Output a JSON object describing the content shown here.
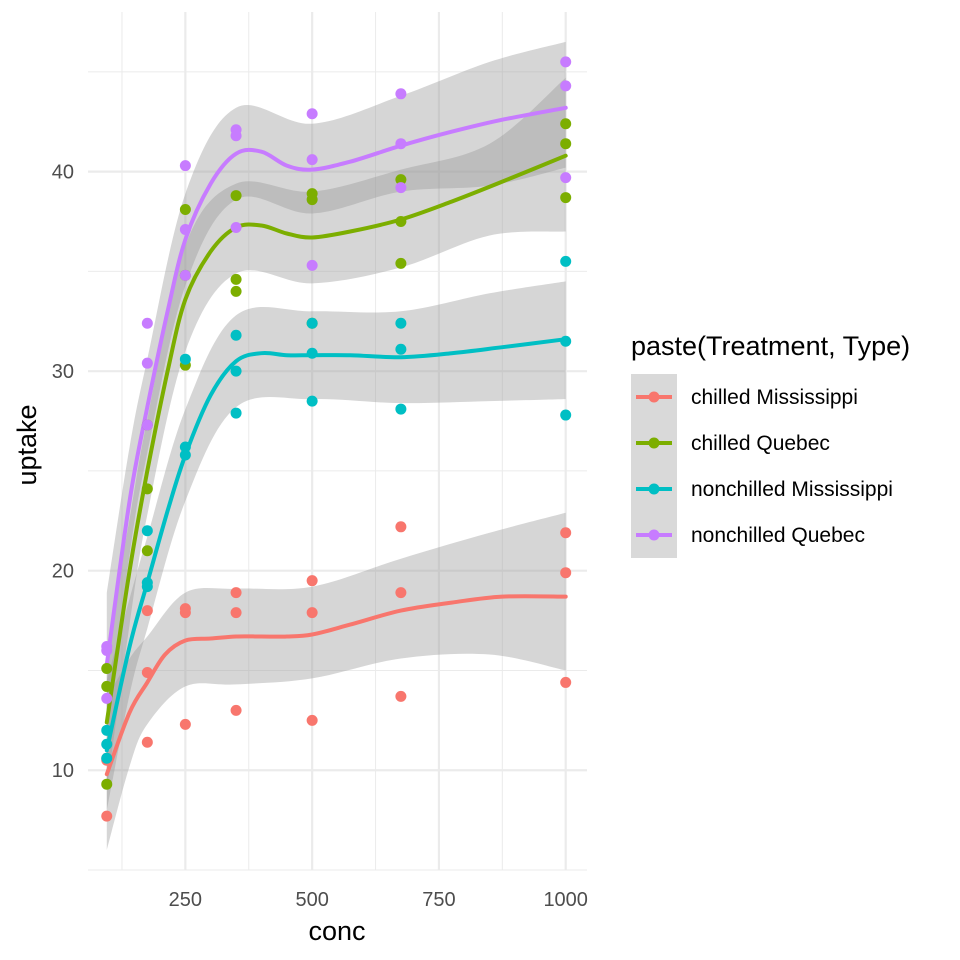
{
  "chart_data": {
    "type": "scatter",
    "title": "",
    "xlabel": "conc",
    "ylabel": "uptake",
    "xlim": [
      58,
      1042
    ],
    "ylim": [
      5,
      48
    ],
    "x_ticks": [
      250,
      500,
      750,
      1000
    ],
    "y_ticks": [
      10,
      20,
      30,
      40
    ],
    "grid": true,
    "smoother": "loess with confidence band",
    "legend": {
      "title": "paste(Treatment, Type)",
      "position": "right"
    },
    "series": [
      {
        "name": "chilled Mississippi",
        "color": "#F8766D",
        "points": [
          [
            95,
            7.7
          ],
          [
            95,
            10.5
          ],
          [
            95,
            10.6
          ],
          [
            175,
            11.4
          ],
          [
            175,
            14.9
          ],
          [
            175,
            18.0
          ],
          [
            250,
            12.3
          ],
          [
            250,
            17.9
          ],
          [
            250,
            18.1
          ],
          [
            350,
            13.0
          ],
          [
            350,
            17.9
          ],
          [
            350,
            18.9
          ],
          [
            500,
            12.5
          ],
          [
            500,
            17.9
          ],
          [
            500,
            19.5
          ],
          [
            675,
            13.7
          ],
          [
            675,
            18.9
          ],
          [
            675,
            22.2
          ],
          [
            1000,
            14.4
          ],
          [
            1000,
            19.9
          ],
          [
            1000,
            21.9
          ]
        ],
        "fit": [
          [
            95,
            9.8
          ],
          [
            140,
            12.9
          ],
          [
            175,
            14.4
          ],
          [
            210,
            15.8
          ],
          [
            250,
            16.5
          ],
          [
            300,
            16.6
          ],
          [
            350,
            16.7
          ],
          [
            400,
            16.7
          ],
          [
            450,
            16.7
          ],
          [
            500,
            16.8
          ],
          [
            575,
            17.3
          ],
          [
            675,
            18.0
          ],
          [
            775,
            18.4
          ],
          [
            875,
            18.7
          ],
          [
            1000,
            18.7
          ]
        ],
        "band": [
          [
            95,
            6.0,
            13.6
          ],
          [
            140,
            10.2,
            15.6
          ],
          [
            175,
            12.3,
            16.7
          ],
          [
            250,
            14.2,
            18.9
          ],
          [
            350,
            14.3,
            19.1
          ],
          [
            500,
            14.6,
            19.2
          ],
          [
            675,
            15.6,
            20.6
          ],
          [
            850,
            15.8,
            21.9
          ],
          [
            1000,
            15.0,
            22.9
          ]
        ]
      },
      {
        "name": "chilled Quebec",
        "color": "#7CAE00",
        "points": [
          [
            95,
            9.3
          ],
          [
            95,
            14.2
          ],
          [
            95,
            15.1
          ],
          [
            175,
            21.0
          ],
          [
            175,
            24.1
          ],
          [
            175,
            27.3
          ],
          [
            250,
            30.3
          ],
          [
            250,
            34.8
          ],
          [
            250,
            38.1
          ],
          [
            350,
            34.0
          ],
          [
            350,
            34.6
          ],
          [
            350,
            38.8
          ],
          [
            500,
            38.6
          ],
          [
            500,
            38.9
          ],
          [
            500,
            32.4
          ],
          [
            675,
            35.4
          ],
          [
            675,
            37.5
          ],
          [
            675,
            39.6
          ],
          [
            1000,
            38.7
          ],
          [
            1000,
            41.4
          ],
          [
            1000,
            42.4
          ]
        ],
        "fit": [
          [
            95,
            12.4
          ],
          [
            140,
            20.0
          ],
          [
            175,
            25.0
          ],
          [
            215,
            30.0
          ],
          [
            250,
            33.6
          ],
          [
            300,
            36.0
          ],
          [
            350,
            37.2
          ],
          [
            400,
            37.3
          ],
          [
            450,
            36.9
          ],
          [
            500,
            36.7
          ],
          [
            575,
            37.0
          ],
          [
            675,
            37.6
          ],
          [
            775,
            38.5
          ],
          [
            875,
            39.5
          ],
          [
            1000,
            40.8
          ]
        ],
        "band": [
          [
            95,
            9.0,
            16.0
          ],
          [
            140,
            17.3,
            22.6
          ],
          [
            175,
            22.8,
            27.6
          ],
          [
            250,
            31.0,
            36.3
          ],
          [
            350,
            34.9,
            39.4
          ],
          [
            500,
            34.4,
            39.0
          ],
          [
            675,
            35.2,
            40.1
          ],
          [
            850,
            36.8,
            41.4
          ],
          [
            1000,
            37.0,
            44.7
          ]
        ]
      },
      {
        "name": "nonchilled Mississippi",
        "color": "#00BFC4",
        "points": [
          [
            95,
            10.6
          ],
          [
            95,
            11.3
          ],
          [
            95,
            12.0
          ],
          [
            175,
            19.2
          ],
          [
            175,
            19.4
          ],
          [
            175,
            22.0
          ],
          [
            250,
            25.8
          ],
          [
            250,
            26.2
          ],
          [
            250,
            30.6
          ],
          [
            350,
            27.9
          ],
          [
            350,
            30.0
          ],
          [
            350,
            31.8
          ],
          [
            500,
            28.5
          ],
          [
            500,
            30.9
          ],
          [
            500,
            32.4
          ],
          [
            675,
            28.1
          ],
          [
            675,
            31.1
          ],
          [
            675,
            32.4
          ],
          [
            1000,
            27.8
          ],
          [
            1000,
            31.5
          ],
          [
            1000,
            35.5
          ]
        ],
        "fit": [
          [
            95,
            11.0
          ],
          [
            140,
            16.2
          ],
          [
            175,
            19.4
          ],
          [
            215,
            23.0
          ],
          [
            250,
            25.8
          ],
          [
            300,
            28.8
          ],
          [
            350,
            30.5
          ],
          [
            400,
            30.9
          ],
          [
            450,
            30.8
          ],
          [
            500,
            30.8
          ],
          [
            575,
            30.8
          ],
          [
            675,
            30.7
          ],
          [
            775,
            30.9
          ],
          [
            875,
            31.2
          ],
          [
            1000,
            31.6
          ]
        ],
        "band": [
          [
            95,
            8.0,
            14.5
          ],
          [
            140,
            13.8,
            18.6
          ],
          [
            175,
            17.1,
            21.7
          ],
          [
            250,
            23.5,
            28.1
          ],
          [
            350,
            28.2,
            32.8
          ],
          [
            500,
            28.6,
            33.0
          ],
          [
            675,
            28.4,
            33.0
          ],
          [
            850,
            28.5,
            33.9
          ],
          [
            1000,
            28.6,
            34.5
          ]
        ]
      },
      {
        "name": "nonchilled Quebec",
        "color": "#C77CFF",
        "points": [
          [
            95,
            13.6
          ],
          [
            95,
            16.0
          ],
          [
            95,
            16.2
          ],
          [
            175,
            30.4
          ],
          [
            175,
            32.4
          ],
          [
            175,
            27.3
          ],
          [
            250,
            34.8
          ],
          [
            250,
            37.1
          ],
          [
            250,
            40.3
          ],
          [
            350,
            37.2
          ],
          [
            350,
            41.8
          ],
          [
            350,
            42.1
          ],
          [
            500,
            35.3
          ],
          [
            500,
            40.6
          ],
          [
            500,
            42.9
          ],
          [
            675,
            39.2
          ],
          [
            675,
            41.4
          ],
          [
            675,
            43.9
          ],
          [
            1000,
            39.7
          ],
          [
            1000,
            44.3
          ],
          [
            1000,
            45.5
          ]
        ],
        "fit": [
          [
            95,
            15.3
          ],
          [
            140,
            23.5
          ],
          [
            175,
            28.2
          ],
          [
            215,
            33.0
          ],
          [
            250,
            36.6
          ],
          [
            300,
            39.4
          ],
          [
            350,
            40.9
          ],
          [
            400,
            41.0
          ],
          [
            450,
            40.3
          ],
          [
            500,
            40.1
          ],
          [
            575,
            40.5
          ],
          [
            675,
            41.3
          ],
          [
            775,
            42.0
          ],
          [
            875,
            42.6
          ],
          [
            1000,
            43.2
          ]
        ],
        "band": [
          [
            95,
            11.8,
            18.9
          ],
          [
            140,
            20.8,
            26.2
          ],
          [
            175,
            25.9,
            30.6
          ],
          [
            250,
            34.3,
            38.9
          ],
          [
            350,
            38.6,
            43.2
          ],
          [
            500,
            37.9,
            42.4
          ],
          [
            675,
            39.0,
            43.8
          ],
          [
            850,
            39.3,
            45.5
          ],
          [
            1000,
            40.2,
            46.5
          ]
        ]
      }
    ]
  }
}
